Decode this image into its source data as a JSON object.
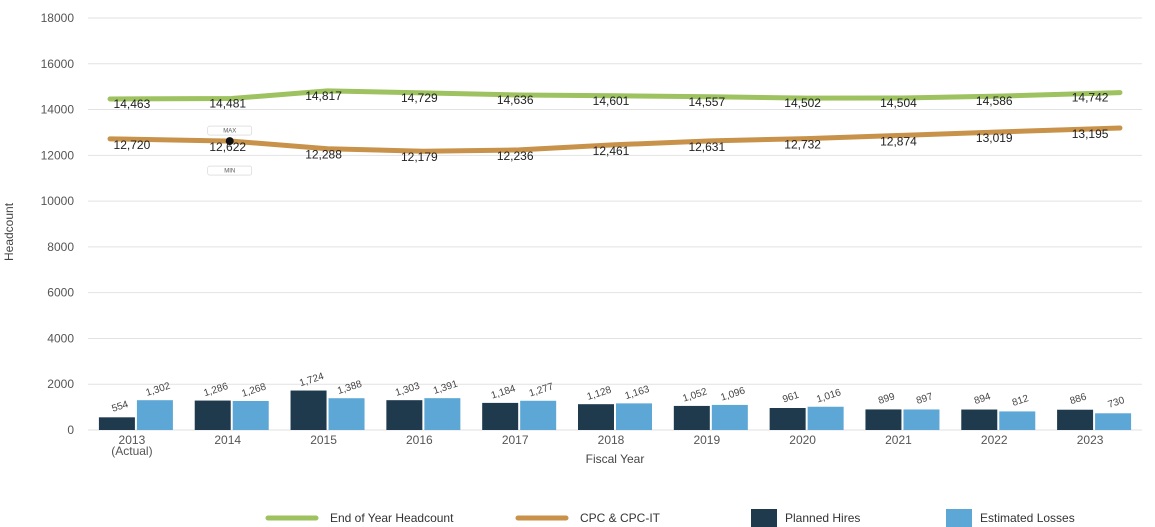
{
  "chart_data": {
    "type": "bar",
    "xlabel": "Fiscal Year",
    "ylabel": "Headcount",
    "ylim": [
      0,
      18000
    ],
    "yticks": [
      0,
      2000,
      4000,
      6000,
      8000,
      10000,
      12000,
      14000,
      16000,
      18000
    ],
    "categories": [
      "2013",
      "2014",
      "2015",
      "2016",
      "2017",
      "2018",
      "2019",
      "2020",
      "2021",
      "2022",
      "2023"
    ],
    "category_sublabels": [
      "(Actual)",
      "",
      "",
      "",
      "",
      "",
      "",
      "",
      "",
      "",
      ""
    ],
    "grid": true,
    "legend_position": "bottom",
    "series": [
      {
        "name": "End of Year Headcount",
        "kind": "line",
        "color": "#9dc25f",
        "values": [
          14463,
          14481,
          14817,
          14729,
          14636,
          14601,
          14557,
          14502,
          14504,
          14586,
          14742
        ],
        "labels": [
          "14,463",
          "14,481",
          "14,817",
          "14,729",
          "14,636",
          "14,601",
          "14,557",
          "14,502",
          "14,504",
          "14,586",
          "14,742"
        ]
      },
      {
        "name": "CPC & CPC-IT",
        "kind": "line",
        "color": "#c8924a",
        "values": [
          12720,
          12622,
          12288,
          12179,
          12236,
          12461,
          12631,
          12732,
          12874,
          13019,
          13195
        ],
        "labels": [
          "12,720",
          "12,622",
          "12,288",
          "12,179",
          "12,236",
          "12,461",
          "12,631",
          "12,732",
          "12,874",
          "13,019",
          "13,195"
        ]
      },
      {
        "name": "Planned Hires",
        "kind": "bar",
        "color": "#1f3a4d",
        "values": [
          554,
          1286,
          1724,
          1303,
          1184,
          1128,
          1052,
          961,
          899,
          894,
          886
        ],
        "labels": [
          "554",
          "1,286",
          "1,724",
          "1,303",
          "1,184",
          "1,128",
          "1,052",
          "961",
          "899",
          "894",
          "886"
        ]
      },
      {
        "name": "Estimated Losses",
        "kind": "bar",
        "color": "#5ca7d6",
        "values": [
          1302,
          1268,
          1388,
          1391,
          1277,
          1163,
          1096,
          1016,
          897,
          812,
          730
        ],
        "labels": [
          "1,302",
          "1,268",
          "1,388",
          "1,391",
          "1,277",
          "1,163",
          "1,096",
          "1,016",
          "897",
          "812",
          "730"
        ]
      }
    ],
    "annotations": [
      {
        "text": "MAX",
        "category": "2014"
      },
      {
        "text": "MIN",
        "category": "2014"
      }
    ]
  }
}
